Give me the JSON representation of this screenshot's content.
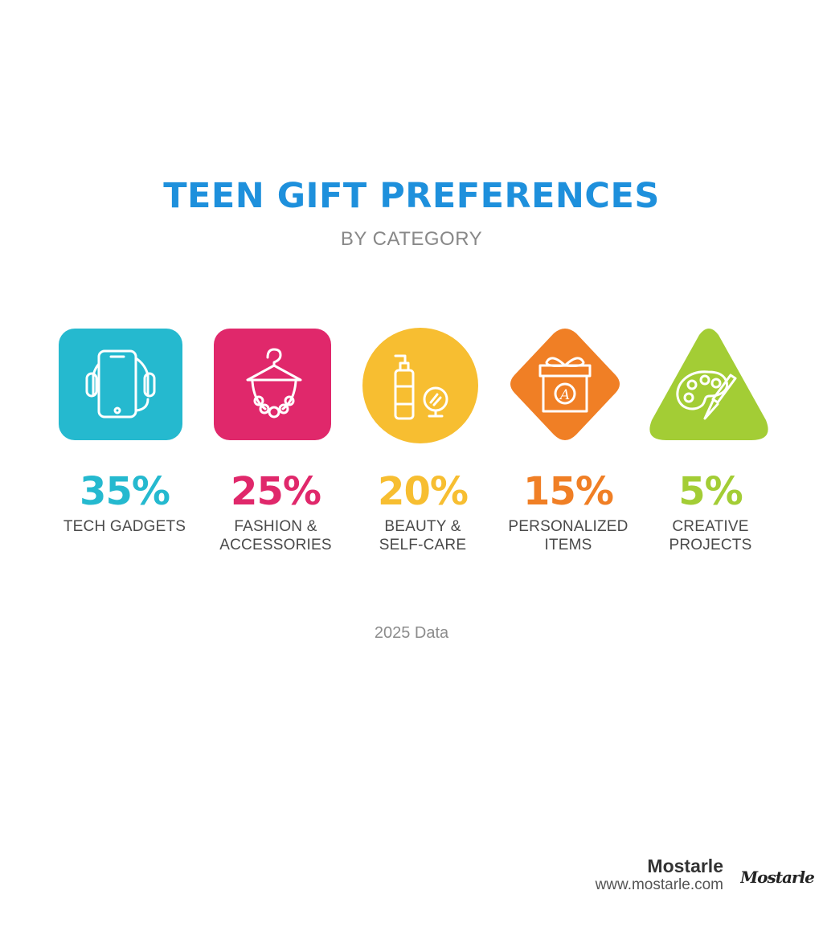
{
  "header": {
    "title": "TEEN GIFT PREFERENCES",
    "subtitle": "BY CATEGORY"
  },
  "chart_data": {
    "type": "bar",
    "title": "TEEN GIFT PREFERENCES",
    "subtitle": "BY CATEGORY",
    "categories": [
      "TECH GADGETS",
      "FASHION & ACCESSORIES",
      "BEAUTY & SELF-CARE",
      "PERSONALIZED ITEMS",
      "CREATIVE PROJECTS"
    ],
    "values": [
      35,
      25,
      20,
      15,
      5
    ],
    "unit": "%",
    "note": "2025 Data"
  },
  "categories": [
    {
      "percent": "35%",
      "label_line1": "TECH GADGETS",
      "label_line2": "",
      "color": "#25B9CF",
      "icon": "smartphone-headphones-icon"
    },
    {
      "percent": "25%",
      "label_line1": "FASHION &",
      "label_line2": "ACCESSORIES",
      "color": "#E0286B",
      "icon": "hanger-necklace-icon"
    },
    {
      "percent": "20%",
      "label_line1": "BEAUTY &",
      "label_line2": "SELF-CARE",
      "color": "#F7BE31",
      "icon": "lotion-mirror-icon"
    },
    {
      "percent": "15%",
      "label_line1": "PERSONALIZED",
      "label_line2": "ITEMS",
      "color": "#F07F25",
      "icon": "gift-box-icon"
    },
    {
      "percent": "5%",
      "label_line1": "CREATIVE",
      "label_line2": "PROJECTS",
      "color": "#A3CD35",
      "icon": "paint-palette-icon"
    }
  ],
  "footer": {
    "note": "2025 Data",
    "brand_name": "Mostarle",
    "brand_url": "www.mostarle.com",
    "logo_text": "Mostarle"
  },
  "colors": {
    "title": "#1E90DC",
    "subtitle": "#888888"
  }
}
